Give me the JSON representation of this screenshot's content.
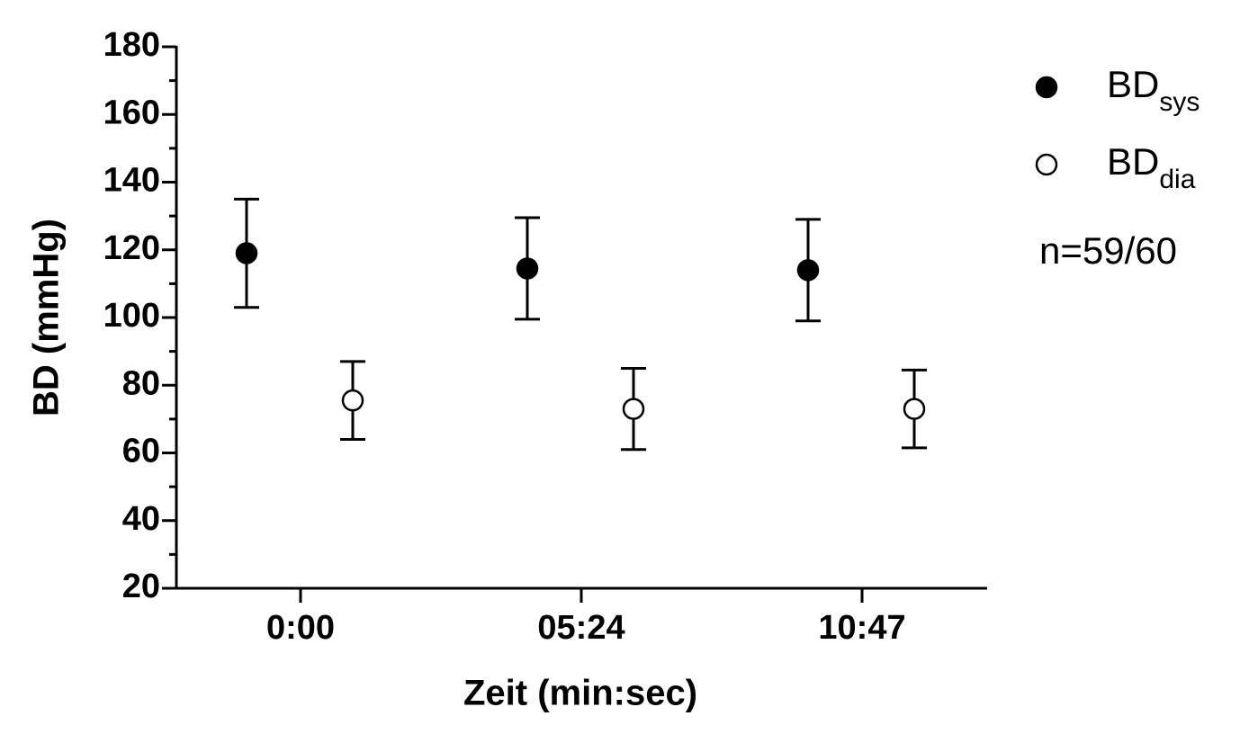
{
  "chart_data": {
    "type": "scatter",
    "x_label": "Zeit (min:sec)",
    "y_label": "BD (mmHg)",
    "categories": [
      "0:00",
      "05:24",
      "10:47"
    ],
    "series": [
      {
        "name": "BD",
        "name_subscript": "sys",
        "color": "#000000",
        "filled": true,
        "values": [
          119,
          114.5,
          114
        ],
        "errors": [
          16,
          15,
          15
        ]
      },
      {
        "name": "BD",
        "name_subscript": "dia",
        "color": "#000000",
        "filled": false,
        "values": [
          75.5,
          73,
          73
        ],
        "errors": [
          11.5,
          12,
          11.5
        ]
      }
    ],
    "ylim": [
      20,
      180
    ],
    "yticks": [
      20,
      40,
      60,
      80,
      100,
      120,
      140,
      160,
      180
    ],
    "yticks_minor": [
      30,
      50,
      70,
      90,
      110,
      130,
      150,
      170
    ],
    "annotation": "n=59/60"
  }
}
